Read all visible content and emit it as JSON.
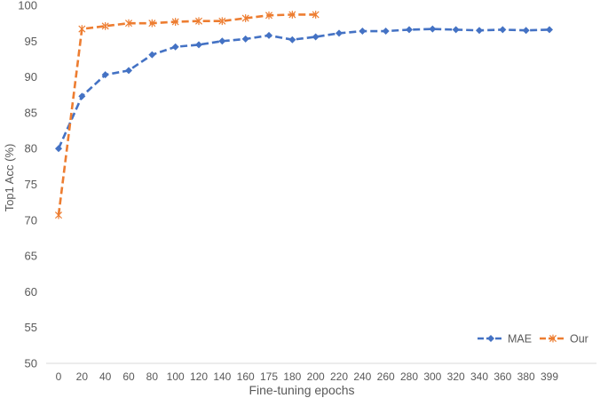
{
  "chart_data": {
    "type": "line",
    "xlabel": "Fine-tuning epochs",
    "ylabel": "Top1 Acc (%)",
    "ylim": [
      50,
      100
    ],
    "yticks": [
      50,
      55,
      60,
      65,
      70,
      75,
      80,
      85,
      90,
      95,
      100
    ],
    "x": [
      "0",
      "20",
      "40",
      "60",
      "80",
      "100",
      "120",
      "140",
      "160",
      "175",
      "180",
      "200",
      "220",
      "240",
      "260",
      "280",
      "300",
      "320",
      "340",
      "360",
      "380",
      "399"
    ],
    "grid": false,
    "legend_position": "bottom-right",
    "series": [
      {
        "name": "MAE",
        "color": "#4472C4",
        "marker": "diamond",
        "line_style": "dashed",
        "values": [
          80.0,
          87.3,
          90.3,
          90.9,
          93.1,
          94.2,
          94.5,
          95.0,
          95.3,
          95.8,
          95.2,
          95.6,
          96.1,
          96.4,
          96.4,
          96.6,
          96.7,
          96.6,
          96.5,
          96.6,
          96.5,
          96.6
        ]
      },
      {
        "name": "Our",
        "color": "#ED7D31",
        "marker": "asterisk",
        "line_style": "dashed",
        "values": [
          70.7,
          96.7,
          97.1,
          97.5,
          97.5,
          97.7,
          97.8,
          97.8,
          98.2,
          98.6,
          98.7,
          98.7,
          null,
          null,
          null,
          null,
          null,
          null,
          null,
          null,
          null,
          null
        ]
      }
    ]
  }
}
